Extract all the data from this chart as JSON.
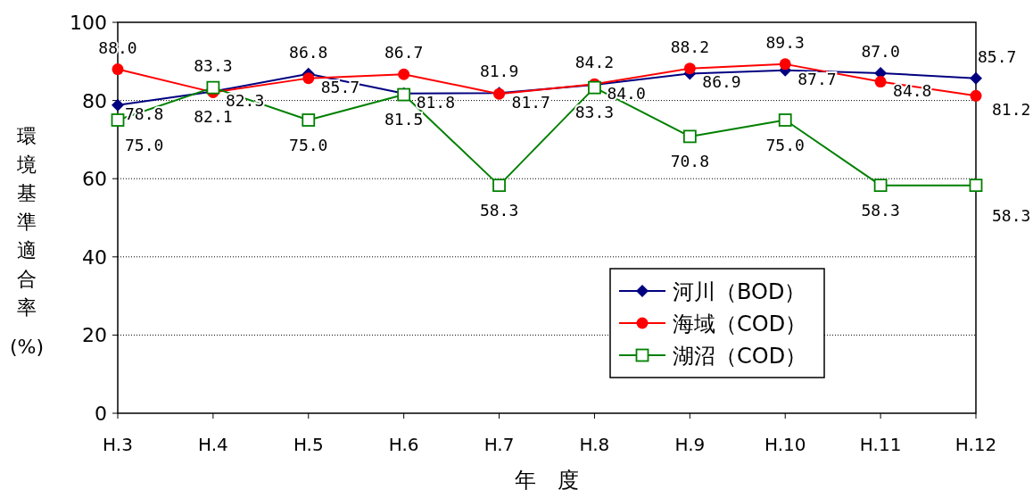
{
  "chart_data": {
    "type": "line",
    "xlabel": "年　度",
    "ylabel": "環境基準適合率(%)",
    "categories": [
      "H.3",
      "H.4",
      "H.5",
      "H.6",
      "H.7",
      "H.8",
      "H.9",
      "H.10",
      "H.11",
      "H.12"
    ],
    "ylim": [
      0,
      100
    ],
    "yticks": [
      0,
      20,
      40,
      60,
      80,
      100
    ],
    "grid": "y",
    "legend": "bottom right",
    "series": [
      {
        "name": "河川（BOD）",
        "color": "#000080",
        "marker": "diamond",
        "values": [
          78.8,
          82.3,
          86.8,
          81.8,
          81.9,
          84.0,
          86.9,
          87.7,
          87.0,
          85.7
        ],
        "value_labels": [
          "78.8",
          "82.3",
          "86.8",
          "81.8",
          "81.9",
          "84.0",
          "86.9",
          "87.7",
          "87.0",
          "85.7"
        ]
      },
      {
        "name": "海域（COD）",
        "color": "#ff0000",
        "marker": "circle",
        "values": [
          88.0,
          82.1,
          85.7,
          86.7,
          81.7,
          84.2,
          88.2,
          89.3,
          84.8,
          81.2
        ],
        "value_labels": [
          "88.0",
          "82.1",
          "85.7",
          "86.7",
          "81.7",
          "84.2",
          "88.2",
          "89.3",
          "84.8",
          "81.2"
        ]
      },
      {
        "name": "湖沼（COD）",
        "color": "#008000",
        "marker": "square",
        "values": [
          75.0,
          83.3,
          75.0,
          81.5,
          58.3,
          83.3,
          70.8,
          75.0,
          58.3,
          58.3
        ],
        "value_labels": [
          "75.0",
          "83.3",
          "75.0",
          "81.5",
          "58.3",
          "83.3",
          "70.8",
          "75.0",
          "58.3",
          "58.3"
        ]
      }
    ]
  }
}
